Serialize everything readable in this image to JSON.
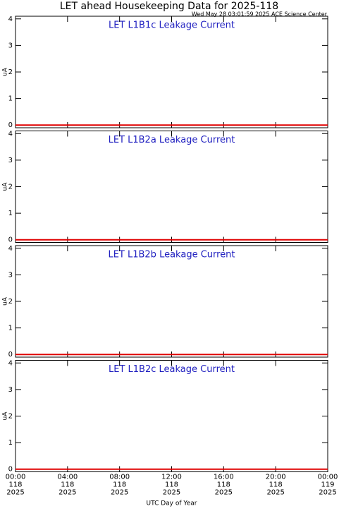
{
  "title": "LET ahead Housekeeping Data for 2025-118",
  "subtitle": "Wed May 28 03:01:59 2025 ACE Science Center",
  "chart_data": [
    {
      "type": "line",
      "title": "LET L1B1c Leakage Current",
      "ylabel": "uA",
      "color": "#e00000",
      "x": [
        0,
        6,
        12,
        18,
        24
      ],
      "values": [
        0,
        0,
        0,
        0,
        0
      ],
      "xlim": [
        0,
        24
      ],
      "xticks": [
        0,
        4,
        8,
        12,
        16,
        20,
        24
      ],
      "ylim": [
        -0.1,
        4.1
      ],
      "yticks": [
        0,
        1,
        2,
        3,
        4
      ]
    },
    {
      "type": "line",
      "title": "LET L1B2a Leakage Current",
      "ylabel": "uA",
      "color": "#e00000",
      "x": [
        0,
        6,
        12,
        18,
        24
      ],
      "values": [
        0,
        0,
        0,
        0,
        0
      ],
      "xlim": [
        0,
        24
      ],
      "xticks": [
        0,
        4,
        8,
        12,
        16,
        20,
        24
      ],
      "ylim": [
        -0.1,
        4.1
      ],
      "yticks": [
        0,
        1,
        2,
        3,
        4
      ]
    },
    {
      "type": "line",
      "title": "LET L1B2b Leakage Current",
      "ylabel": "uA",
      "color": "#e00000",
      "x": [
        0,
        6,
        12,
        18,
        24
      ],
      "values": [
        0,
        0,
        0,
        0,
        0
      ],
      "xlim": [
        0,
        24
      ],
      "xticks": [
        0,
        4,
        8,
        12,
        16,
        20,
        24
      ],
      "ylim": [
        -0.1,
        4.1
      ],
      "yticks": [
        0,
        1,
        2,
        3,
        4
      ]
    },
    {
      "type": "line",
      "title": "LET L1B2c Leakage Current",
      "ylabel": "uA",
      "color": "#e00000",
      "x": [
        0,
        6,
        12,
        18,
        24
      ],
      "values": [
        0,
        0,
        0,
        0,
        0
      ],
      "xlim": [
        0,
        24
      ],
      "xticks": [
        {
          "value": 0,
          "label": "00:00"
        },
        {
          "value": 4,
          "label": "04:00"
        },
        {
          "value": 8,
          "label": "08:00"
        },
        {
          "value": 12,
          "label": "12:00"
        },
        {
          "value": 16,
          "label": "16:00"
        },
        {
          "value": 20,
          "label": "20:00"
        },
        {
          "value": 24,
          "label": "00:00"
        }
      ],
      "xtick_days": [
        "118",
        "118",
        "118",
        "118",
        "118",
        "118",
        "119"
      ],
      "xtick_years": [
        "2025",
        "2025",
        "2025",
        "2025",
        "2025",
        "2025",
        "2025"
      ],
      "xlabel": "UTC Day of Year",
      "ylim": [
        -0.1,
        4.1
      ],
      "yticks": [
        0,
        1,
        2,
        3,
        4
      ]
    }
  ]
}
